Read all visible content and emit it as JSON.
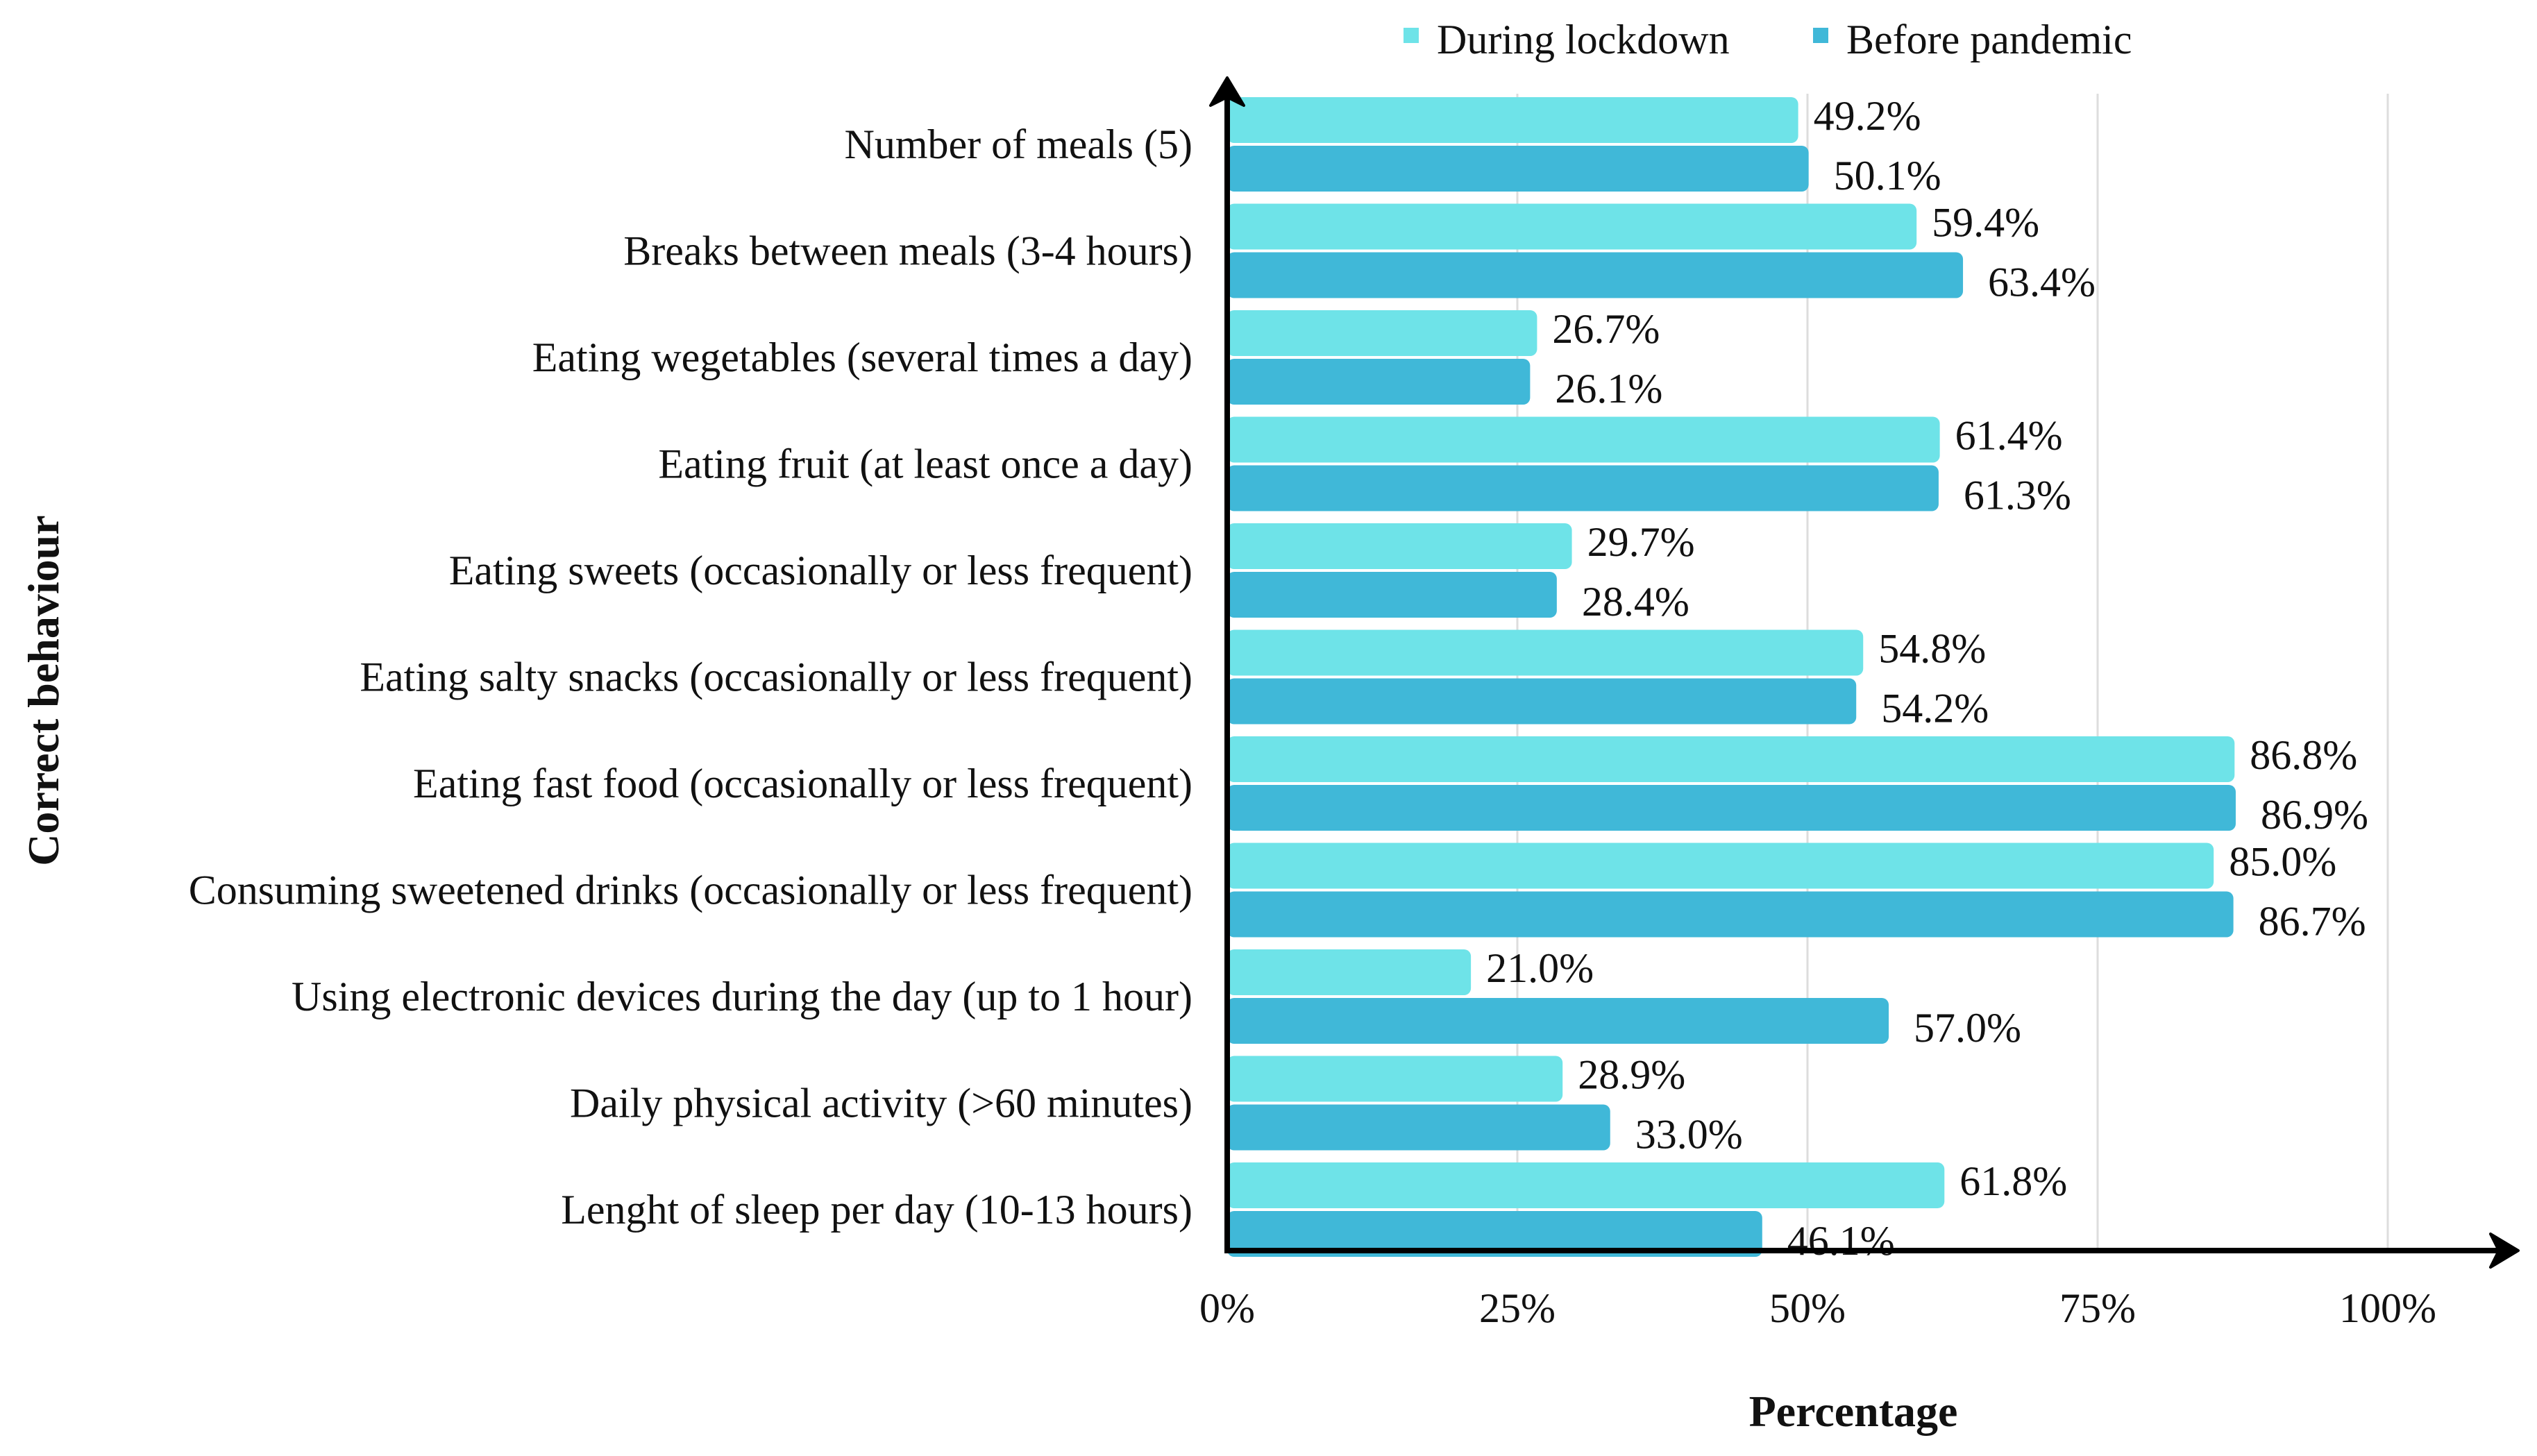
{
  "chart_data": {
    "type": "bar",
    "orientation": "horizontal",
    "categories": [
      "Number of meals (5)",
      "Breaks between meals (3-4 hours)",
      "Eating wegetables (several times a day)",
      "Eating fruit (at least once a day)",
      "Eating sweets (occasionally or less frequent)",
      "Eating salty snacks (occasionally or less frequent)",
      "Eating fast food (occasionally or less frequent)",
      "Consuming sweetened drinks (occasionally or less frequent)",
      "Using electronic devices during the day (up to 1 hour)",
      "Daily physical activity (>60 minutes)",
      "Lenght of sleep per day (10-13 hours)"
    ],
    "series": [
      {
        "name": "During lockdown",
        "color": "#6ee3e8",
        "values": [
          49.2,
          59.4,
          26.7,
          61.4,
          29.7,
          54.8,
          86.8,
          85.0,
          21.0,
          28.9,
          61.8
        ],
        "labels": [
          "49.2%",
          "59.4%",
          "26.7%",
          "61.4%",
          "29.7%",
          "54.8%",
          "86.8%",
          "85.0%",
          "21.0%",
          "28.9%",
          "61.8%"
        ]
      },
      {
        "name": "Before pandemic",
        "color": "#40b8d8",
        "values": [
          50.1,
          63.4,
          26.1,
          61.3,
          28.4,
          54.2,
          86.9,
          86.7,
          57.0,
          33.0,
          46.1
        ],
        "labels": [
          "50.1%",
          "63.4%",
          "26.1%",
          "61.3%",
          "28.4%",
          "54.2%",
          "86.9%",
          "86.7%",
          "57.0%",
          "33.0%",
          "46.1%"
        ]
      }
    ],
    "xlabel": "Percentage",
    "ylabel": "Correct behaviour",
    "xlim": [
      0,
      100
    ],
    "xticks": [
      0,
      25,
      50,
      75,
      100
    ],
    "xtick_labels": [
      "0%",
      "25%",
      "50%",
      "75%",
      "100%"
    ],
    "grid": "vertical",
    "legend_position": "top"
  }
}
